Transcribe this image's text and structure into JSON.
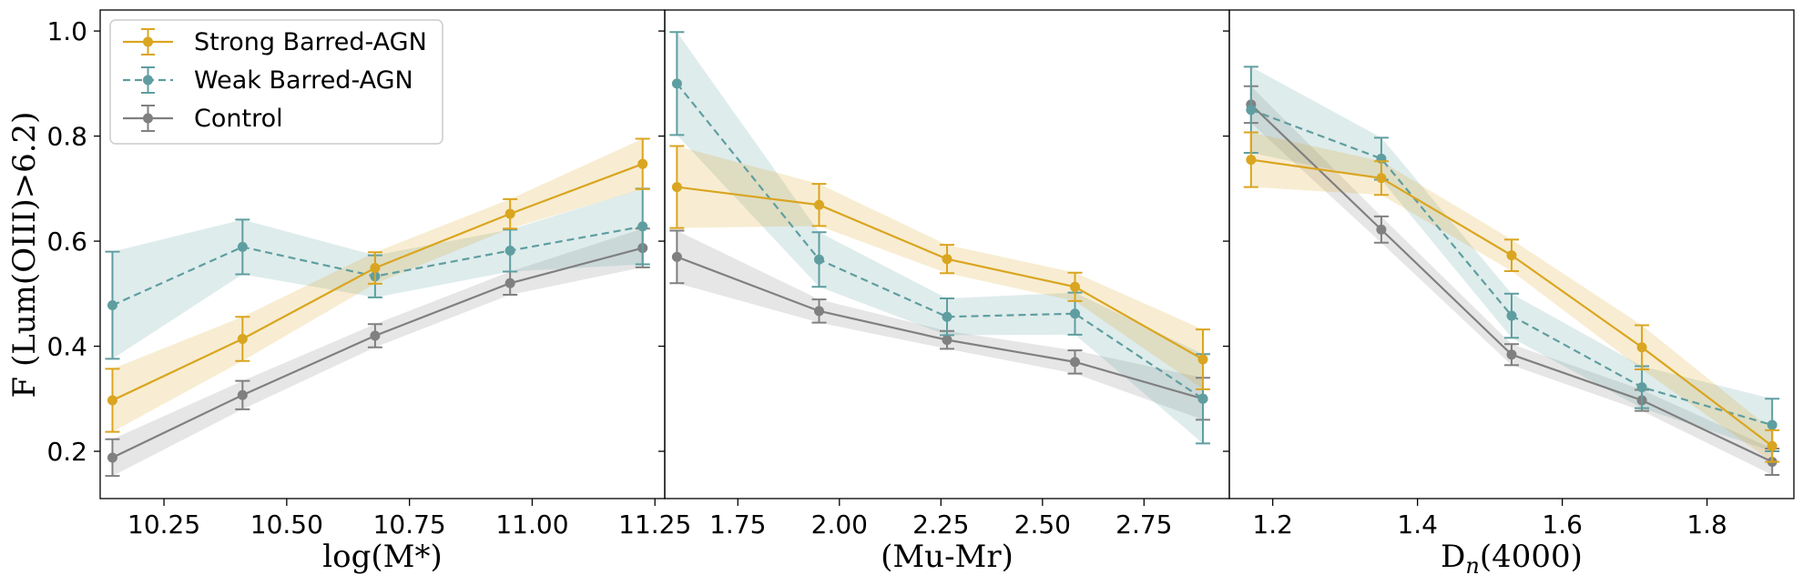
{
  "chart_data": {
    "type": "line",
    "ylabel": "F (Lum(OIII)>6.2)",
    "shared_y": true,
    "ylim": [
      0.11,
      1.04
    ],
    "yticks": [
      0.2,
      0.4,
      0.6,
      0.8,
      1.0
    ],
    "ytick_labels": [
      "0.2",
      "0.4",
      "0.6",
      "0.8",
      "1.0"
    ],
    "series_styles": [
      {
        "name": "Strong Barred-AGN",
        "color": "#DAA520",
        "dash": "solid"
      },
      {
        "name": "Weak Barred-AGN",
        "color": "#5F9EA0",
        "dash": "dashed"
      },
      {
        "name": "Control",
        "color": "#808080",
        "dash": "solid"
      }
    ],
    "legend": {
      "location": "upper-left",
      "panel": 0
    },
    "panels": [
      {
        "xlabel": "log(M*)",
        "xlim": [
          10.12,
          11.27
        ],
        "xticks": [
          10.25,
          10.5,
          10.75,
          11.0,
          11.25
        ],
        "xtick_labels": [
          "10.25",
          "10.50",
          "10.75",
          "11.00",
          "11.25"
        ],
        "x": [
          10.145,
          10.41,
          10.68,
          10.955,
          11.225
        ],
        "series": [
          {
            "name": "Strong Barred-AGN",
            "values": [
              0.297,
              0.414,
              0.549,
              0.652,
              0.747
            ],
            "err": [
              0.06,
              0.042,
              0.03,
              0.028,
              0.048
            ]
          },
          {
            "name": "Weak Barred-AGN",
            "values": [
              0.478,
              0.589,
              0.533,
              0.582,
              0.628
            ],
            "err": [
              0.102,
              0.052,
              0.04,
              0.04,
              0.072
            ]
          },
          {
            "name": "Control",
            "values": [
              0.188,
              0.307,
              0.42,
              0.52,
              0.587
            ],
            "err": [
              0.035,
              0.027,
              0.022,
              0.022,
              0.037
            ]
          }
        ]
      },
      {
        "xlabel": "(Mu-Mr)",
        "xlim": [
          1.57,
          2.96
        ],
        "xticks": [
          1.75,
          2.0,
          2.25,
          2.5,
          2.75
        ],
        "xtick_labels": [
          "1.75",
          "2.00",
          "2.25",
          "2.50",
          "2.75"
        ],
        "x": [
          1.6,
          1.95,
          2.265,
          2.58,
          2.895
        ],
        "series": [
          {
            "name": "Strong Barred-AGN",
            "values": [
              0.703,
              0.669,
              0.566,
              0.513,
              0.375
            ],
            "err": [
              0.078,
              0.04,
              0.027,
              0.027,
              0.057
            ]
          },
          {
            "name": "Weak Barred-AGN",
            "values": [
              0.9,
              0.565,
              0.456,
              0.462,
              0.3
            ],
            "err": [
              0.098,
              0.052,
              0.035,
              0.04,
              0.085
            ]
          },
          {
            "name": "Control",
            "values": [
              0.57,
              0.467,
              0.412,
              0.37,
              0.3
            ],
            "err": [
              0.05,
              0.022,
              0.017,
              0.022,
              0.04
            ]
          }
        ]
      },
      {
        "xlabel": "D_n(4000)",
        "xlabel_main": "D",
        "xlabel_sub": "n",
        "xlabel_rest": "(4000)",
        "xlim": [
          1.14,
          1.92
        ],
        "xticks": [
          1.2,
          1.4,
          1.6,
          1.8
        ],
        "xtick_labels": [
          "1.2",
          "1.4",
          "1.6",
          "1.8"
        ],
        "x": [
          1.17,
          1.35,
          1.53,
          1.71,
          1.89
        ],
        "series": [
          {
            "name": "Strong Barred-AGN",
            "values": [
              0.755,
              0.72,
              0.573,
              0.398,
              0.21
            ],
            "err": [
              0.052,
              0.032,
              0.03,
              0.042,
              0.03
            ]
          },
          {
            "name": "Weak Barred-AGN",
            "values": [
              0.85,
              0.757,
              0.458,
              0.322,
              0.25
            ],
            "err": [
              0.082,
              0.04,
              0.042,
              0.04,
              0.05
            ]
          },
          {
            "name": "Control",
            "values": [
              0.86,
              0.622,
              0.384,
              0.297,
              0.18
            ],
            "err": [
              0.035,
              0.025,
              0.02,
              0.02,
              0.025
            ]
          }
        ]
      }
    ]
  }
}
